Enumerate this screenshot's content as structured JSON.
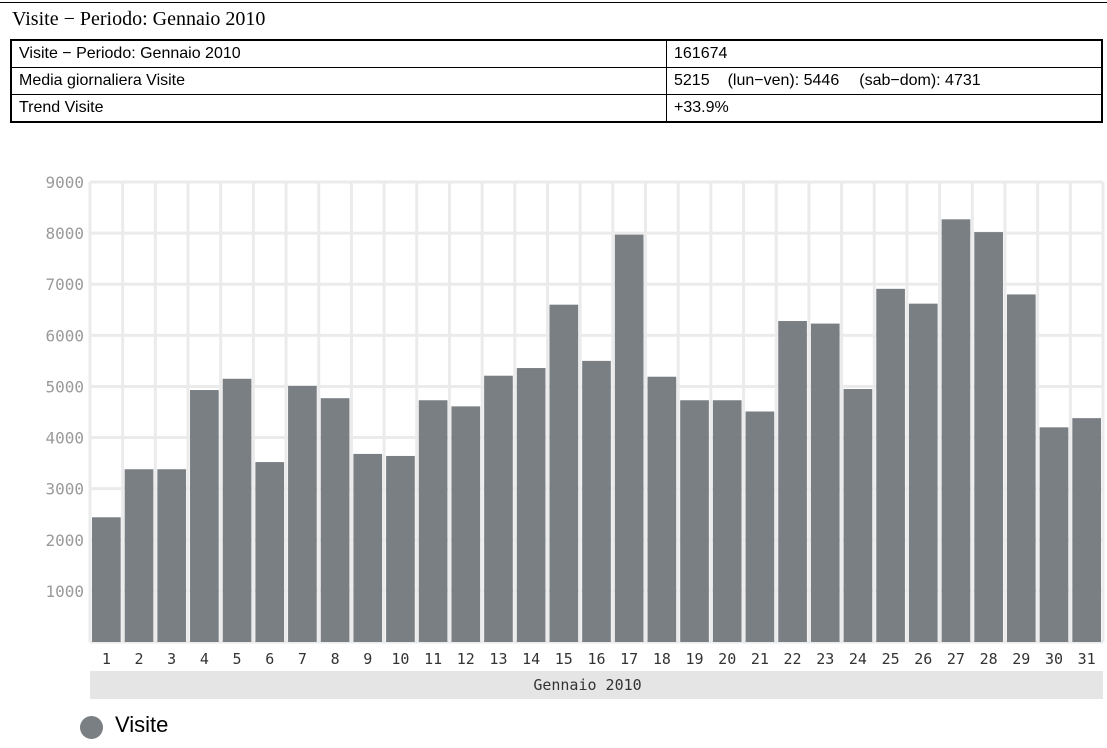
{
  "page": {
    "title": "Visite − Periodo: Gennaio 2010"
  },
  "summary": {
    "rows": [
      {
        "label": "Visite − Periodo: Gennaio 2010",
        "value": "161674"
      },
      {
        "label": "Media giornaliera Visite",
        "value": "5215",
        "weekday": "(lun−ven): 5446",
        "weekend": "(sab−dom): 4731"
      },
      {
        "label": "Trend Visite",
        "value": "+33.9%"
      }
    ]
  },
  "chart_data": {
    "type": "bar",
    "title": "",
    "xlabel": "Gennaio 2010",
    "ylabel": "",
    "ylim": [
      0,
      9000
    ],
    "yticks": [
      1000,
      2000,
      3000,
      4000,
      5000,
      6000,
      7000,
      8000,
      9000
    ],
    "categories": [
      "1",
      "2",
      "3",
      "4",
      "5",
      "6",
      "7",
      "8",
      "9",
      "10",
      "11",
      "12",
      "13",
      "14",
      "15",
      "16",
      "17",
      "18",
      "19",
      "20",
      "21",
      "22",
      "23",
      "24",
      "25",
      "26",
      "27",
      "28",
      "29",
      "30",
      "31"
    ],
    "series": [
      {
        "name": "Visite",
        "color": "#7a7f84",
        "values": [
          2440,
          3380,
          3380,
          4930,
          5150,
          3520,
          5010,
          4770,
          3680,
          3640,
          4730,
          4610,
          5210,
          5360,
          6600,
          5500,
          7970,
          5190,
          4730,
          4730,
          4510,
          6280,
          6230,
          4950,
          6910,
          6620,
          8270,
          8020,
          6800,
          4200,
          4380
        ]
      }
    ],
    "grid": true,
    "legend": "bottom-left"
  }
}
